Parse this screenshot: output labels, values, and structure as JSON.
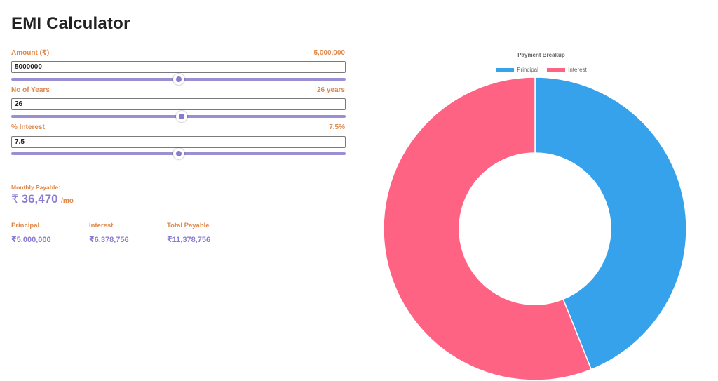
{
  "page_title": "EMI Calculator",
  "amount": {
    "label": "Amount (₹)",
    "display_value": "5,000,000",
    "input_value": "5000000",
    "slider_fraction": 0.5
  },
  "years": {
    "label": "No of Years",
    "display_value": "26 years",
    "input_value": "26",
    "slider_fraction": 0.51
  },
  "interest": {
    "label": "% Interest",
    "display_value": "7.5%",
    "input_value": "7.5",
    "slider_fraction": 0.5
  },
  "monthly": {
    "label": "Monthly Payable:",
    "currency_symbol": "₹",
    "amount": "36,470",
    "unit": "/mo"
  },
  "summary": [
    {
      "label": "Principal",
      "value": "₹5,000,000"
    },
    {
      "label": "Interest",
      "value": "₹6,378,756"
    },
    {
      "label": "Total Payable",
      "value": "₹11,378,756"
    }
  ],
  "colors": {
    "accent": "#8a7bd0",
    "label_orange": "#e0884a",
    "principal": "#36a2eb",
    "interest": "#ff6384"
  },
  "chart_data": {
    "type": "pie",
    "subtype": "doughnut",
    "title": "Payment Breakup",
    "legend_position": "top",
    "categories": [
      "Principal",
      "Interest"
    ],
    "values": [
      5000000,
      6378756
    ],
    "colors": [
      "#36a2eb",
      "#ff6384"
    ]
  }
}
